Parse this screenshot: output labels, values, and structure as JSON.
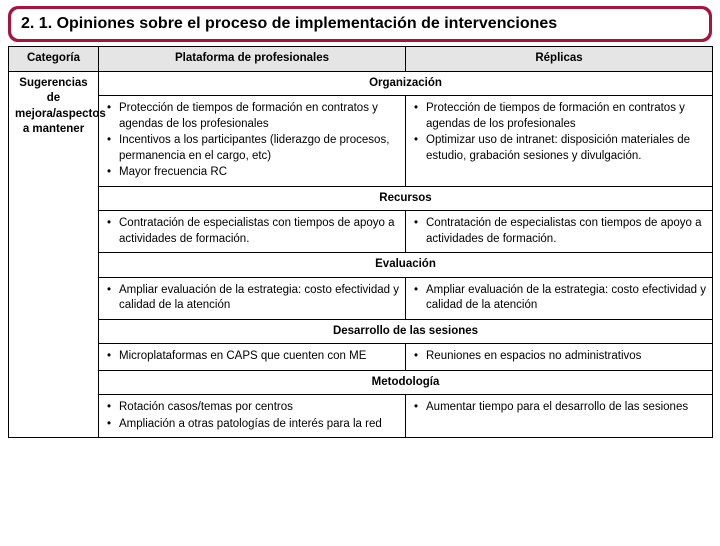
{
  "title": "2. 1. Opiniones sobre el proceso de implementación de intervenciones",
  "headers": {
    "categoria": "Categoría",
    "plataforma": "Plataforma de profesionales",
    "replicas": "Réplicas"
  },
  "category_label": "Sugerencias de mejora/aspectos a mantener",
  "sections": [
    {
      "name": "Organización",
      "left": [
        "Protección de tiempos de formación en contratos y agendas de los profesionales",
        "Incentivos a los participantes (liderazgo de procesos, permanencia en el cargo, etc)",
        "Mayor frecuencia RC"
      ],
      "right": [
        "Protección de tiempos de formación en contratos y agendas de los profesionales",
        "Optimizar uso de intranet: disposición materiales de estudio, grabación sesiones y divulgación."
      ]
    },
    {
      "name": "Recursos",
      "left": [
        "Contratación de especialistas con tiempos de apoyo a actividades de formación."
      ],
      "right": [
        "Contratación de especialistas con tiempos de apoyo a actividades de formación."
      ]
    },
    {
      "name": "Evaluación",
      "left": [
        "Ampliar evaluación de la estrategia: costo efectividad y calidad de la atención"
      ],
      "right": [
        "Ampliar evaluación de la estrategia:  costo efectividad y calidad de la atención"
      ]
    },
    {
      "name": "Desarrollo de las sesiones",
      "left": [
        "Microplataformas en CAPS que cuenten con ME"
      ],
      "right": [
        "Reuniones en espacios no administrativos"
      ]
    },
    {
      "name": "Metodología",
      "left": [
        "Rotación casos/temas por centros",
        "Ampliación a otras patologías de interés para la red"
      ],
      "right": [
        "Aumentar tiempo para el desarrollo de las sesiones"
      ]
    }
  ],
  "colors": {
    "title_bar": "#a6143c",
    "header_bg": "#e5e5e5",
    "border": "#000000",
    "background": "#ffffff"
  }
}
